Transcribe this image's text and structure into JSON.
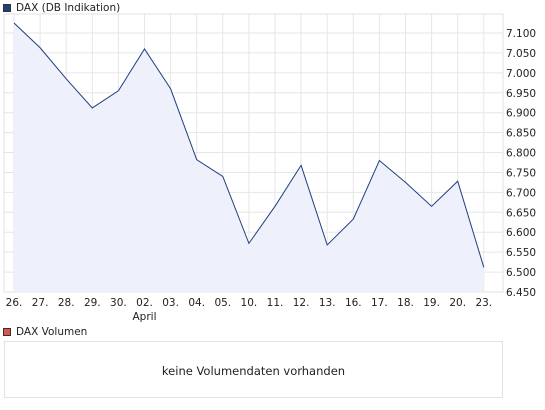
{
  "chart_data": [
    {
      "type": "area",
      "legend": "DAX (DB Indikation)",
      "legend_color": "#1f3f7f",
      "line_color": "#1f3f7f",
      "fill_color": "#eef1fb",
      "grid": true,
      "y_axis_side": "right",
      "ylim": [
        6450,
        7150
      ],
      "yticks": [
        6450,
        6500,
        6550,
        6600,
        6650,
        6700,
        6750,
        6800,
        6850,
        6900,
        6950,
        7000,
        7050,
        7100
      ],
      "ytick_labels": [
        "6.450",
        "6.500",
        "6.550",
        "6.600",
        "6.650",
        "6.700",
        "6.750",
        "6.800",
        "6.850",
        "6.900",
        "6.950",
        "7.000",
        "7.050",
        "7.100"
      ],
      "categories": [
        "26.",
        "27.",
        "28.",
        "29.",
        "30.",
        "02.",
        "03.",
        "04.",
        "05.",
        "10.",
        "11.",
        "12.",
        "13.",
        "16.",
        "17.",
        "18.",
        "19.",
        "20.",
        "23."
      ],
      "month_label": "April",
      "month_label_index": 5,
      "values": [
        7125,
        7063,
        6985,
        6912,
        6955,
        7060,
        6960,
        6782,
        6740,
        6572,
        6665,
        6768,
        6568,
        6633,
        6780,
        6725,
        6665,
        6728,
        6512
      ]
    },
    {
      "type": "bar",
      "legend": "DAX Volumen",
      "legend_color": "#d9534f",
      "message": "keine Volumendaten vorhanden"
    }
  ]
}
